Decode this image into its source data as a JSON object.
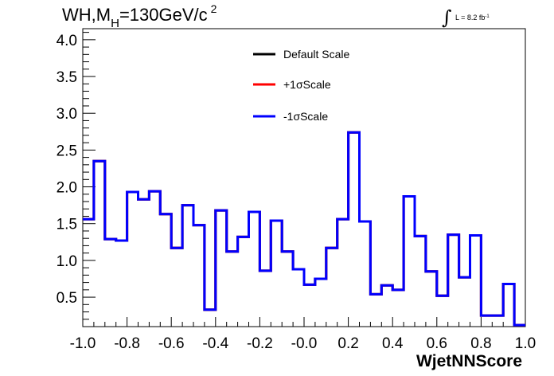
{
  "chart_data": {
    "type": "histogram",
    "title": {
      "main": "WH,M",
      "sub": "H",
      "rest": "=130GeV/c",
      "sup": "2"
    },
    "annotation": {
      "integral": "∫",
      "text": "L = 8.2 fb",
      "sup": "-1"
    },
    "xlabel": "WjetNNScore",
    "ylabel": "",
    "xlim": [
      -1.0,
      1.0
    ],
    "ylim": [
      0.1,
      4.15
    ],
    "x_ticks": [
      "-1.0",
      "-0.8",
      "-0.6",
      "-0.4",
      "-0.2",
      "-0.0",
      "0.2",
      "0.4",
      "0.6",
      "0.8",
      "1.0"
    ],
    "y_ticks": [
      "0.5",
      "1.0",
      "1.5",
      "2.0",
      "2.5",
      "3.0",
      "3.5",
      "4.0"
    ],
    "legend_position": "top-center",
    "bin_edges": [
      -1.0,
      -0.95,
      -0.9,
      -0.85,
      -0.8,
      -0.75,
      -0.7,
      -0.65,
      -0.6,
      -0.55,
      -0.5,
      -0.45,
      -0.4,
      -0.35,
      -0.3,
      -0.25,
      -0.2,
      -0.15,
      -0.1,
      -0.05,
      0.0,
      0.05,
      0.1,
      0.15,
      0.2,
      0.25,
      0.3,
      0.35,
      0.4,
      0.45,
      0.5,
      0.55,
      0.6,
      0.65,
      0.7,
      0.75,
      0.8,
      0.85,
      0.9,
      0.95,
      1.0
    ],
    "series": [
      {
        "name": "Default Scale",
        "color": "#000000",
        "values": [
          1.56,
          2.35,
          1.29,
          1.27,
          1.93,
          1.83,
          1.94,
          1.63,
          1.17,
          1.75,
          1.48,
          0.33,
          1.68,
          1.12,
          1.32,
          1.66,
          0.86,
          1.54,
          1.12,
          0.88,
          0.67,
          0.75,
          1.17,
          1.56,
          2.74,
          1.53,
          0.54,
          0.66,
          0.6,
          1.87,
          1.33,
          0.85,
          0.52,
          1.35,
          0.77,
          1.34,
          0.25,
          0.25,
          0.68,
          0.12
        ]
      },
      {
        "name": "+1σScale",
        "color": "#ff0000",
        "values": [
          1.56,
          2.35,
          1.29,
          1.27,
          1.93,
          1.83,
          1.94,
          1.63,
          1.17,
          1.75,
          1.48,
          0.33,
          1.68,
          1.12,
          1.32,
          1.66,
          0.86,
          1.54,
          1.12,
          0.88,
          0.67,
          0.75,
          1.17,
          1.56,
          2.74,
          1.53,
          0.54,
          0.66,
          0.6,
          1.87,
          1.33,
          0.85,
          0.52,
          1.35,
          0.77,
          1.34,
          0.25,
          0.25,
          0.68,
          0.12
        ]
      },
      {
        "name": "-1σScale",
        "color": "#0000ff",
        "values": [
          1.56,
          2.35,
          1.29,
          1.27,
          1.93,
          1.83,
          1.94,
          1.63,
          1.17,
          1.75,
          1.48,
          0.33,
          1.68,
          1.12,
          1.32,
          1.66,
          0.86,
          1.54,
          1.12,
          0.88,
          0.67,
          0.75,
          1.17,
          1.56,
          2.74,
          1.53,
          0.54,
          0.66,
          0.6,
          1.87,
          1.33,
          0.85,
          0.52,
          1.35,
          0.77,
          1.34,
          0.25,
          0.25,
          0.68,
          0.12
        ]
      }
    ]
  }
}
